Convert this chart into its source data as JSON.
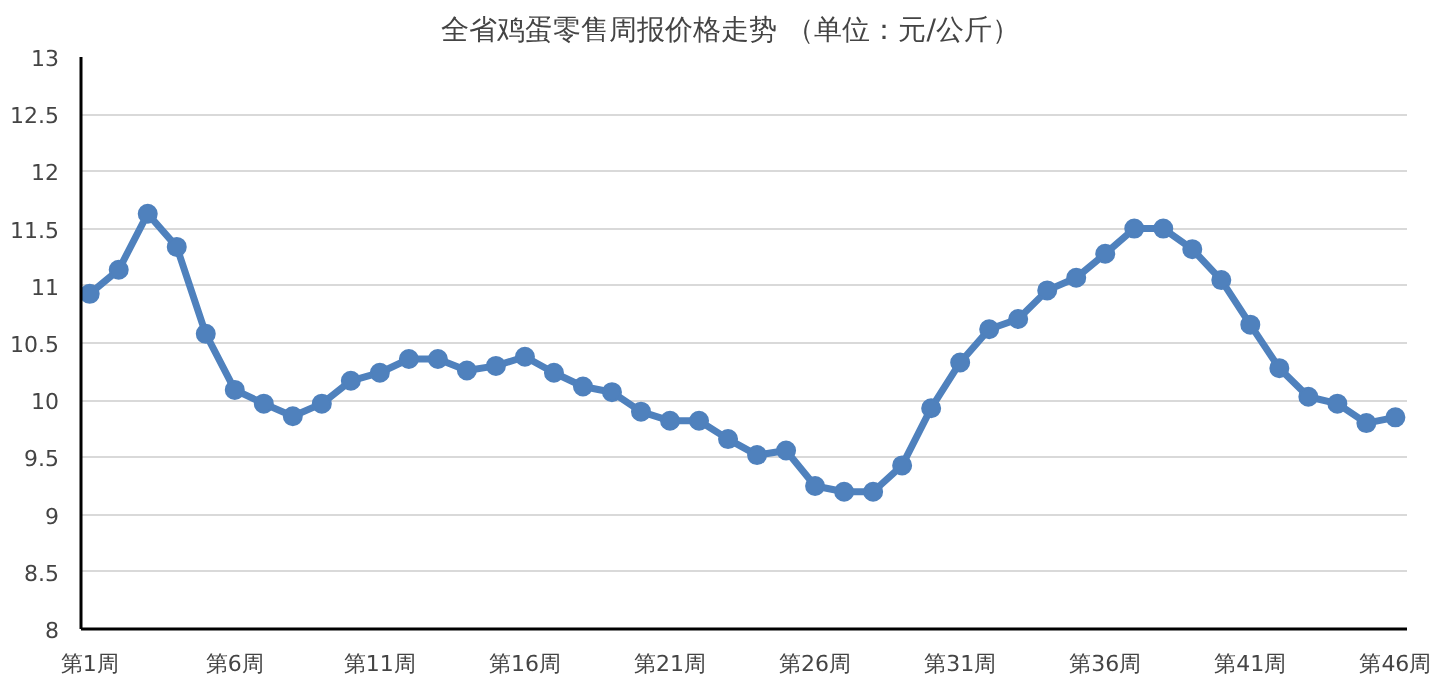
{
  "chart_data": {
    "type": "line",
    "title": "全省鸡蛋零售周报价格走势    （单位：元/公斤）",
    "categories": [
      "第1周",
      null,
      null,
      null,
      null,
      "第6周",
      null,
      null,
      null,
      null,
      "第11周",
      null,
      null,
      null,
      null,
      "第16周",
      null,
      null,
      null,
      null,
      "第21周",
      null,
      null,
      null,
      null,
      "第26周",
      null,
      null,
      null,
      null,
      "第31周",
      null,
      null,
      null,
      null,
      "第36周",
      null,
      null,
      null,
      null,
      "第41周",
      null,
      null,
      null,
      null,
      "第46周"
    ],
    "series": [
      {
        "color": "#4f81bd",
        "values": [
          10.93,
          11.14,
          11.63,
          11.34,
          10.58,
          10.09,
          9.97,
          9.86,
          9.97,
          10.17,
          10.24,
          10.36,
          10.36,
          10.26,
          10.3,
          10.38,
          10.24,
          10.12,
          10.07,
          9.9,
          9.82,
          9.82,
          9.66,
          9.52,
          9.56,
          9.25,
          9.2,
          9.2,
          9.43,
          9.93,
          10.33,
          10.62,
          10.71,
          10.96,
          11.07,
          11.28,
          11.5,
          11.5,
          11.32,
          11.05,
          10.66,
          10.28,
          10.03,
          9.97,
          9.8,
          9.85
        ]
      }
    ],
    "ylim": [
      8,
      13
    ],
    "yticks": [
      8,
      8.5,
      9,
      9.5,
      10,
      10.5,
      11,
      11.5,
      12,
      12.5,
      13
    ],
    "grid": "y",
    "marker": "circle",
    "line_style": "solid"
  }
}
